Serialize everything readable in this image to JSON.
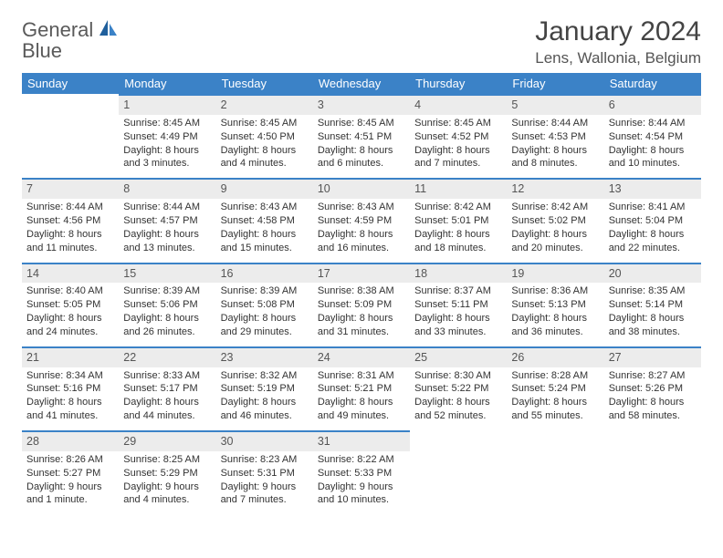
{
  "logo": {
    "line1": "General",
    "line2": "Blue",
    "color_general": "#6b6b6b",
    "color_blue": "#3b7fc4"
  },
  "title": "January 2024",
  "location": "Lens, Wallonia, Belgium",
  "header_bg": "#3b82c7",
  "daynum_bg": "#ececec",
  "daynum_border": "#3b82c7",
  "weekdays": [
    "Sunday",
    "Monday",
    "Tuesday",
    "Wednesday",
    "Thursday",
    "Friday",
    "Saturday"
  ],
  "weeks": [
    [
      null,
      {
        "n": "1",
        "sr": "8:45 AM",
        "ss": "4:49 PM",
        "dl": "8 hours and 3 minutes."
      },
      {
        "n": "2",
        "sr": "8:45 AM",
        "ss": "4:50 PM",
        "dl": "8 hours and 4 minutes."
      },
      {
        "n": "3",
        "sr": "8:45 AM",
        "ss": "4:51 PM",
        "dl": "8 hours and 6 minutes."
      },
      {
        "n": "4",
        "sr": "8:45 AM",
        "ss": "4:52 PM",
        "dl": "8 hours and 7 minutes."
      },
      {
        "n": "5",
        "sr": "8:44 AM",
        "ss": "4:53 PM",
        "dl": "8 hours and 8 minutes."
      },
      {
        "n": "6",
        "sr": "8:44 AM",
        "ss": "4:54 PM",
        "dl": "8 hours and 10 minutes."
      }
    ],
    [
      {
        "n": "7",
        "sr": "8:44 AM",
        "ss": "4:56 PM",
        "dl": "8 hours and 11 minutes."
      },
      {
        "n": "8",
        "sr": "8:44 AM",
        "ss": "4:57 PM",
        "dl": "8 hours and 13 minutes."
      },
      {
        "n": "9",
        "sr": "8:43 AM",
        "ss": "4:58 PM",
        "dl": "8 hours and 15 minutes."
      },
      {
        "n": "10",
        "sr": "8:43 AM",
        "ss": "4:59 PM",
        "dl": "8 hours and 16 minutes."
      },
      {
        "n": "11",
        "sr": "8:42 AM",
        "ss": "5:01 PM",
        "dl": "8 hours and 18 minutes."
      },
      {
        "n": "12",
        "sr": "8:42 AM",
        "ss": "5:02 PM",
        "dl": "8 hours and 20 minutes."
      },
      {
        "n": "13",
        "sr": "8:41 AM",
        "ss": "5:04 PM",
        "dl": "8 hours and 22 minutes."
      }
    ],
    [
      {
        "n": "14",
        "sr": "8:40 AM",
        "ss": "5:05 PM",
        "dl": "8 hours and 24 minutes."
      },
      {
        "n": "15",
        "sr": "8:39 AM",
        "ss": "5:06 PM",
        "dl": "8 hours and 26 minutes."
      },
      {
        "n": "16",
        "sr": "8:39 AM",
        "ss": "5:08 PM",
        "dl": "8 hours and 29 minutes."
      },
      {
        "n": "17",
        "sr": "8:38 AM",
        "ss": "5:09 PM",
        "dl": "8 hours and 31 minutes."
      },
      {
        "n": "18",
        "sr": "8:37 AM",
        "ss": "5:11 PM",
        "dl": "8 hours and 33 minutes."
      },
      {
        "n": "19",
        "sr": "8:36 AM",
        "ss": "5:13 PM",
        "dl": "8 hours and 36 minutes."
      },
      {
        "n": "20",
        "sr": "8:35 AM",
        "ss": "5:14 PM",
        "dl": "8 hours and 38 minutes."
      }
    ],
    [
      {
        "n": "21",
        "sr": "8:34 AM",
        "ss": "5:16 PM",
        "dl": "8 hours and 41 minutes."
      },
      {
        "n": "22",
        "sr": "8:33 AM",
        "ss": "5:17 PM",
        "dl": "8 hours and 44 minutes."
      },
      {
        "n": "23",
        "sr": "8:32 AM",
        "ss": "5:19 PM",
        "dl": "8 hours and 46 minutes."
      },
      {
        "n": "24",
        "sr": "8:31 AM",
        "ss": "5:21 PM",
        "dl": "8 hours and 49 minutes."
      },
      {
        "n": "25",
        "sr": "8:30 AM",
        "ss": "5:22 PM",
        "dl": "8 hours and 52 minutes."
      },
      {
        "n": "26",
        "sr": "8:28 AM",
        "ss": "5:24 PM",
        "dl": "8 hours and 55 minutes."
      },
      {
        "n": "27",
        "sr": "8:27 AM",
        "ss": "5:26 PM",
        "dl": "8 hours and 58 minutes."
      }
    ],
    [
      {
        "n": "28",
        "sr": "8:26 AM",
        "ss": "5:27 PM",
        "dl": "9 hours and 1 minute."
      },
      {
        "n": "29",
        "sr": "8:25 AM",
        "ss": "5:29 PM",
        "dl": "9 hours and 4 minutes."
      },
      {
        "n": "30",
        "sr": "8:23 AM",
        "ss": "5:31 PM",
        "dl": "9 hours and 7 minutes."
      },
      {
        "n": "31",
        "sr": "8:22 AM",
        "ss": "5:33 PM",
        "dl": "9 hours and 10 minutes."
      },
      null,
      null,
      null
    ]
  ],
  "labels": {
    "sunrise": "Sunrise: ",
    "sunset": "Sunset: ",
    "daylight": "Daylight: "
  }
}
